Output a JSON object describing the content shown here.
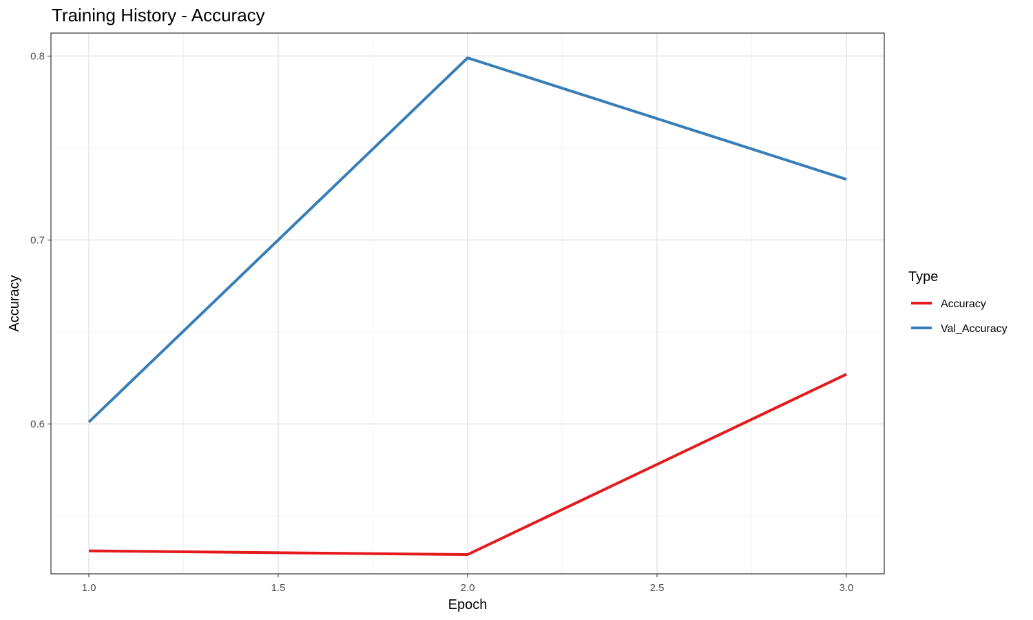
{
  "chart_data": {
    "type": "line",
    "title": "Training History - Accuracy",
    "xlabel": "Epoch",
    "ylabel": "Accuracy",
    "x": [
      1,
      2,
      3
    ],
    "xlim": [
      0.9,
      3.1
    ],
    "ylim": [
      0.5185,
      0.8125
    ],
    "x_ticks": [
      1.0,
      1.5,
      2.0,
      2.5,
      3.0
    ],
    "x_tick_labels": [
      "1.0",
      "1.5",
      "2.0",
      "2.5",
      "3.0"
    ],
    "y_ticks": [
      0.6,
      0.7,
      0.8
    ],
    "y_tick_labels": [
      "0.6",
      "0.7",
      "0.8"
    ],
    "y_minor_ticks": [
      0.55,
      0.65,
      0.75
    ],
    "x_minor_ticks": [
      1.25,
      1.75,
      2.25,
      2.75
    ],
    "grid": true,
    "legend": {
      "title": "Type",
      "placement": "right"
    },
    "series": [
      {
        "name": "Accuracy",
        "color": "#e41a1c",
        "values": [
          0.531,
          0.529,
          0.627
        ]
      },
      {
        "name": "Val_Accuracy",
        "color": "#377eb8",
        "values": [
          0.601,
          0.799,
          0.733
        ]
      }
    ]
  }
}
